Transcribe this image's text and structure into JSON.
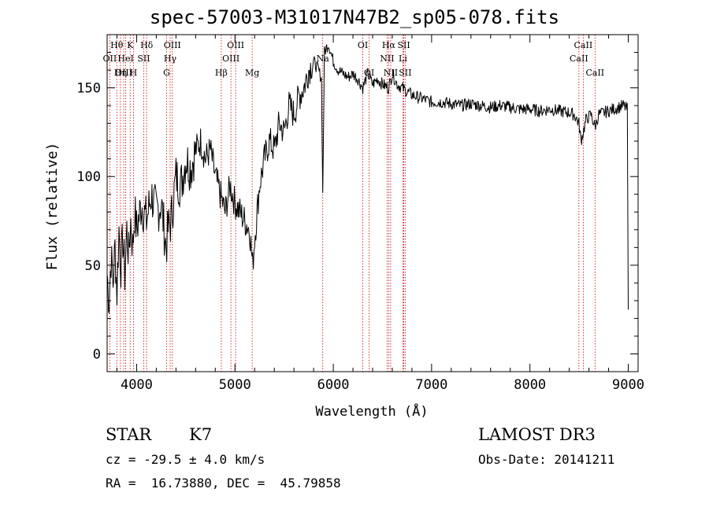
{
  "page": {
    "title": "spec-57003-M31017N47B2_sp05-078.fits"
  },
  "info": {
    "object_class": "STAR",
    "subclass": "K7",
    "redshift": "cz = -29.5 ± 4.0 km/s",
    "coords": "RA =  16.73880, DEC =  45.79858",
    "survey": "LAMOST DR3",
    "obs_date": "Obs-Date: 20141211"
  },
  "colors": {
    "spectrum": "#000000",
    "line_markers": "#cc0000",
    "axes": "#000000"
  },
  "chart_data": {
    "type": "line",
    "title": "spec-57003-M31017N47B2_sp05-078.fits",
    "xlabel": "Wavelength (Å)",
    "ylabel": "Flux (relative)",
    "xlim": [
      3700,
      9100
    ],
    "ylim": [
      -10,
      180
    ],
    "xticks": [
      4000,
      5000,
      6000,
      7000,
      8000,
      9000
    ],
    "yticks": [
      0,
      50,
      100,
      150
    ],
    "series": [
      {
        "name": "spectrum",
        "x": [
          3700,
          3720,
          3740,
          3760,
          3780,
          3800,
          3820,
          3840,
          3860,
          3880,
          3900,
          3920,
          3940,
          3960,
          3980,
          4000,
          4050,
          4100,
          4150,
          4200,
          4250,
          4300,
          4320,
          4350,
          4400,
          4450,
          4500,
          4550,
          4600,
          4650,
          4700,
          4750,
          4800,
          4850,
          4900,
          4950,
          5000,
          5050,
          5100,
          5150,
          5180,
          5200,
          5250,
          5300,
          5350,
          5400,
          5450,
          5500,
          5550,
          5600,
          5650,
          5700,
          5750,
          5800,
          5850,
          5880,
          5893,
          5910,
          5950,
          6000,
          6050,
          6100,
          6150,
          6200,
          6250,
          6300,
          6350,
          6400,
          6450,
          6500,
          6563,
          6600,
          6650,
          6700,
          6750,
          6800,
          6850,
          6900,
          6950,
          7000,
          7100,
          7200,
          7300,
          7400,
          7500,
          7600,
          7700,
          7800,
          7900,
          8000,
          8100,
          8200,
          8300,
          8400,
          8450,
          8498,
          8520,
          8542,
          8570,
          8620,
          8662,
          8700,
          8750,
          8800,
          8850,
          8900,
          8950,
          8990,
          9000
        ],
        "y": [
          45,
          30,
          55,
          40,
          60,
          35,
          70,
          50,
          65,
          45,
          70,
          55,
          75,
          60,
          80,
          70,
          85,
          75,
          90,
          80,
          85,
          60,
          70,
          75,
          100,
          95,
          110,
          105,
          115,
          120,
          110,
          115,
          100,
          90,
          80,
          95,
          85,
          80,
          75,
          70,
          50,
          65,
          95,
          110,
          120,
          115,
          130,
          125,
          140,
          135,
          145,
          150,
          160,
          165,
          160,
          155,
          90,
          170,
          175,
          165,
          160,
          158,
          156,
          158,
          155,
          150,
          158,
          152,
          155,
          152,
          150,
          158,
          152,
          150,
          148,
          146,
          145,
          144,
          143,
          142,
          142,
          141,
          140,
          141,
          140,
          139,
          140,
          139,
          138,
          138,
          137,
          138,
          137,
          136,
          135,
          130,
          120,
          125,
          132,
          135,
          128,
          135,
          136,
          137,
          138,
          139,
          140,
          138,
          25
        ]
      }
    ],
    "line_markers": [
      {
        "label": "Hθ",
        "wavelength": 3798,
        "row": 1
      },
      {
        "label": "OII",
        "wavelength": 3727,
        "row": 2
      },
      {
        "label": "OIII",
        "wavelength": 3869,
        "row": 3
      },
      {
        "label": "K",
        "wavelength": 3934,
        "row": 1
      },
      {
        "label": "HeI",
        "wavelength": 3889,
        "row": 2
      },
      {
        "label": "Hη",
        "wavelength": 3835,
        "row": 3
      },
      {
        "label": "SII",
        "wavelength": 4072,
        "row": 2
      },
      {
        "label": "H",
        "wavelength": 3968,
        "row": 3
      },
      {
        "label": "Hδ",
        "wavelength": 4102,
        "row": 1
      },
      {
        "label": "OIII",
        "wavelength": 4363,
        "row": 1
      },
      {
        "label": "Hγ",
        "wavelength": 4341,
        "row": 2
      },
      {
        "label": "G",
        "wavelength": 4305,
        "row": 3
      },
      {
        "label": "OIII",
        "wavelength": 5007,
        "row": 1
      },
      {
        "label": "OIII",
        "wavelength": 4959,
        "row": 2
      },
      {
        "label": "Hβ",
        "wavelength": 4861,
        "row": 3
      },
      {
        "label": "Mg",
        "wavelength": 5175,
        "row": 3
      },
      {
        "label": "Na",
        "wavelength": 5893,
        "row": 2
      },
      {
        "label": "OI",
        "wavelength": 6300,
        "row": 1
      },
      {
        "label": "OI",
        "wavelength": 6364,
        "row": 3
      },
      {
        "label": "Hα",
        "wavelength": 6563,
        "row": 1
      },
      {
        "label": "NII",
        "wavelength": 6548,
        "row": 2
      },
      {
        "label": "NII",
        "wavelength": 6584,
        "row": 3
      },
      {
        "label": "SII",
        "wavelength": 6717,
        "row": 1
      },
      {
        "label": "Li",
        "wavelength": 6708,
        "row": 2
      },
      {
        "label": "SII",
        "wavelength": 6731,
        "row": 3
      },
      {
        "label": "CaII",
        "wavelength": 8542,
        "row": 1
      },
      {
        "label": "CaII",
        "wavelength": 8498,
        "row": 2
      },
      {
        "label": "CaII",
        "wavelength": 8662,
        "row": 3
      }
    ]
  }
}
